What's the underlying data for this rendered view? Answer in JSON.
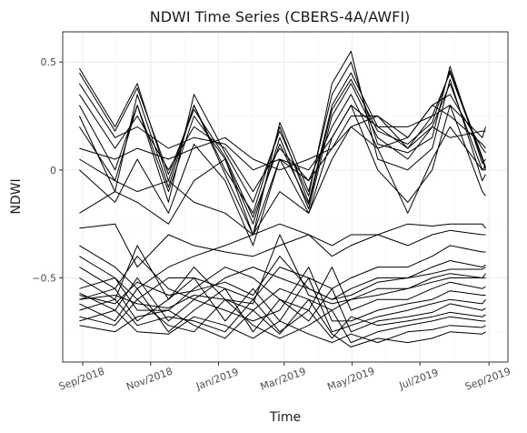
{
  "chart_data": {
    "type": "line",
    "title": "NDWI Time Series (CBERS-4A/AWFI)",
    "xlabel": "Time",
    "ylabel": "NDWI",
    "x_tick_labels": [
      "Sep/2018",
      "Nov/2018",
      "Jan/2019",
      "Mar/2019",
      "May/2019",
      "Jul/2019",
      "Sep/2019"
    ],
    "x_tick_dates": [
      "2018-09-01",
      "2018-11-01",
      "2019-01-01",
      "2019-03-01",
      "2019-05-01",
      "2019-07-01",
      "2019-09-01"
    ],
    "y_ticks": [
      -0.5,
      0,
      0.5
    ],
    "y_tick_labels": [
      "−0.5",
      "0",
      "0.5"
    ],
    "ylim": [
      -0.89,
      0.64
    ],
    "xlim": [
      "2018-08-14",
      "2019-09-18"
    ],
    "grid": true,
    "legend": "none",
    "line_color": "#000000",
    "x": [
      "2018-08-29",
      "2018-09-30",
      "2018-10-20",
      "2018-11-17",
      "2018-12-10",
      "2019-01-07",
      "2019-02-01",
      "2019-02-25",
      "2019-03-23",
      "2019-04-13",
      "2019-04-30",
      "2019-05-24",
      "2019-06-20",
      "2019-07-12",
      "2019-07-28",
      "2019-08-26",
      "2019-08-29"
    ],
    "series": [
      {
        "values": [
          0.47,
          0.2,
          0.4,
          -0.05,
          0.3,
          0.0,
          -0.2,
          0.2,
          -0.15,
          0.3,
          0.45,
          0.2,
          0.1,
          0.25,
          0.45,
          0.05,
          0.0
        ]
      },
      {
        "values": [
          0.3,
          0.0,
          0.3,
          -0.1,
          0.25,
          0.05,
          -0.25,
          0.15,
          -0.18,
          0.25,
          0.4,
          0.15,
          0.05,
          0.2,
          0.4,
          0.0,
          0.02
        ]
      },
      {
        "values": [
          0.35,
          0.1,
          0.25,
          0.0,
          0.2,
          0.1,
          -0.1,
          0.1,
          -0.05,
          0.2,
          0.35,
          0.1,
          0.15,
          0.3,
          0.35,
          0.1,
          0.08
        ]
      },
      {
        "values": [
          0.25,
          -0.1,
          0.35,
          -0.08,
          0.3,
          -0.02,
          -0.3,
          0.22,
          -0.1,
          0.35,
          0.5,
          0.12,
          0.08,
          0.15,
          0.48,
          0.03,
          0.05
        ]
      },
      {
        "values": [
          0.4,
          0.15,
          0.2,
          0.1,
          0.15,
          0.12,
          0.0,
          0.05,
          0.0,
          0.15,
          0.3,
          0.2,
          0.2,
          0.25,
          0.3,
          0.15,
          0.2
        ]
      },
      {
        "values": [
          0.2,
          -0.05,
          0.3,
          -0.15,
          0.35,
          0.08,
          -0.15,
          0.18,
          -0.12,
          0.4,
          0.55,
          0.05,
          0.0,
          0.1,
          0.42,
          -0.05,
          -0.02
        ]
      },
      {
        "values": [
          0.1,
          0.05,
          0.1,
          0.05,
          0.1,
          0.15,
          0.05,
          0.0,
          0.05,
          0.1,
          0.25,
          0.25,
          0.15,
          0.3,
          0.25,
          0.12,
          0.1
        ]
      },
      {
        "values": [
          0.45,
          0.18,
          0.38,
          -0.02,
          0.28,
          0.06,
          -0.22,
          0.12,
          -0.16,
          0.28,
          0.42,
          0.18,
          0.12,
          0.22,
          0.46,
          0.06,
          0.01
        ]
      },
      {
        "values": [
          0.0,
          -0.15,
          0.05,
          -0.2,
          0.12,
          -0.05,
          -0.35,
          0.05,
          -0.2,
          0.15,
          0.3,
          0.0,
          -0.15,
          0.0,
          0.3,
          -0.1,
          -0.12
        ]
      },
      {
        "values": [
          0.05,
          -0.05,
          -0.1,
          -0.05,
          -0.15,
          -0.2,
          -0.3,
          -0.1,
          -0.2,
          0.05,
          0.2,
          0.1,
          -0.2,
          0.05,
          0.2,
          0.0,
          0.0
        ]
      },
      {
        "values": [
          -0.2,
          -0.1,
          -0.15,
          -0.25,
          -0.05,
          0.05,
          -0.3,
          0.05,
          -0.05,
          0.1,
          0.2,
          0.25,
          0.1,
          0.2,
          0.15,
          0.18,
          0.18
        ]
      },
      {
        "values": [
          -0.27,
          -0.25,
          -0.45,
          -0.3,
          -0.35,
          -0.38,
          -0.4,
          -0.35,
          -0.3,
          -0.35,
          -0.3,
          -0.3,
          -0.25,
          -0.26,
          -0.25,
          -0.25,
          -0.27
        ]
      },
      {
        "values": [
          -0.35,
          -0.45,
          -0.55,
          -0.45,
          -0.4,
          -0.35,
          -0.3,
          -0.25,
          -0.3,
          -0.4,
          -0.35,
          -0.3,
          -0.35,
          -0.3,
          -0.28,
          -0.3,
          -0.3
        ]
      },
      {
        "values": [
          -0.4,
          -0.5,
          -0.6,
          -0.5,
          -0.5,
          -0.55,
          -0.6,
          -0.45,
          -0.5,
          -0.55,
          -0.5,
          -0.45,
          -0.45,
          -0.4,
          -0.35,
          -0.38,
          -0.38
        ]
      },
      {
        "values": [
          -0.45,
          -0.55,
          -0.4,
          -0.55,
          -0.6,
          -0.5,
          -0.45,
          -0.5,
          -0.55,
          -0.6,
          -0.55,
          -0.5,
          -0.5,
          -0.45,
          -0.42,
          -0.45,
          -0.44
        ]
      },
      {
        "values": [
          -0.5,
          -0.6,
          -0.35,
          -0.6,
          -0.45,
          -0.6,
          -0.65,
          -0.55,
          -0.6,
          -0.65,
          -0.6,
          -0.55,
          -0.55,
          -0.5,
          -0.48,
          -0.5,
          -0.5
        ]
      },
      {
        "values": [
          -0.55,
          -0.5,
          -0.65,
          -0.65,
          -0.55,
          -0.45,
          -0.5,
          -0.6,
          -0.65,
          -0.45,
          -0.65,
          -0.6,
          -0.6,
          -0.55,
          -0.52,
          -0.55,
          -0.54
        ]
      },
      {
        "values": [
          -0.57,
          -0.65,
          -0.5,
          -0.7,
          -0.6,
          -0.65,
          -0.7,
          -0.65,
          -0.45,
          -0.7,
          -0.7,
          -0.65,
          -0.62,
          -0.6,
          -0.56,
          -0.58,
          -0.58
        ]
      },
      {
        "values": [
          -0.6,
          -0.55,
          -0.7,
          -0.6,
          -0.5,
          -0.7,
          -0.55,
          -0.7,
          -0.5,
          -0.75,
          -0.72,
          -0.68,
          -0.65,
          -0.62,
          -0.6,
          -0.62,
          -0.6
        ]
      },
      {
        "values": [
          -0.62,
          -0.7,
          -0.55,
          -0.75,
          -0.65,
          -0.55,
          -0.75,
          -0.6,
          -0.7,
          -0.55,
          -0.75,
          -0.7,
          -0.68,
          -0.66,
          -0.62,
          -0.65,
          -0.64
        ]
      },
      {
        "values": [
          -0.65,
          -0.6,
          -0.72,
          -0.68,
          -0.7,
          -0.75,
          -0.6,
          -0.75,
          -0.65,
          -0.78,
          -0.68,
          -0.72,
          -0.7,
          -0.68,
          -0.66,
          -0.68,
          -0.67
        ]
      },
      {
        "values": [
          -0.68,
          -0.72,
          -0.6,
          -0.72,
          -0.75,
          -0.6,
          -0.72,
          -0.78,
          -0.72,
          -0.65,
          -0.8,
          -0.75,
          -0.72,
          -0.7,
          -0.68,
          -0.7,
          -0.7
        ]
      },
      {
        "values": [
          -0.7,
          -0.65,
          -0.75,
          -0.76,
          -0.68,
          -0.72,
          -0.78,
          -0.7,
          -0.76,
          -0.8,
          -0.76,
          -0.8,
          -0.75,
          -0.74,
          -0.72,
          -0.73,
          -0.72
        ]
      },
      {
        "values": [
          -0.72,
          -0.75,
          -0.68,
          -0.65,
          -0.72,
          -0.78,
          -0.65,
          -0.76,
          -0.6,
          -0.76,
          -0.82,
          -0.78,
          -0.8,
          -0.78,
          -0.75,
          -0.76,
          -0.75
        ]
      },
      {
        "values": [
          -0.6,
          -0.58,
          -0.62,
          -0.64,
          -0.58,
          -0.6,
          -0.62,
          -0.3,
          -0.58,
          -0.62,
          -0.6,
          -0.58,
          -0.55,
          -0.52,
          -0.5,
          -0.5,
          -0.48
        ]
      },
      {
        "values": [
          -0.58,
          -0.62,
          -0.52,
          -0.58,
          -0.56,
          -0.52,
          -0.58,
          -0.4,
          -0.55,
          -0.6,
          -0.58,
          -0.52,
          -0.5,
          -0.48,
          -0.46,
          -0.46,
          -0.45
        ]
      }
    ]
  }
}
